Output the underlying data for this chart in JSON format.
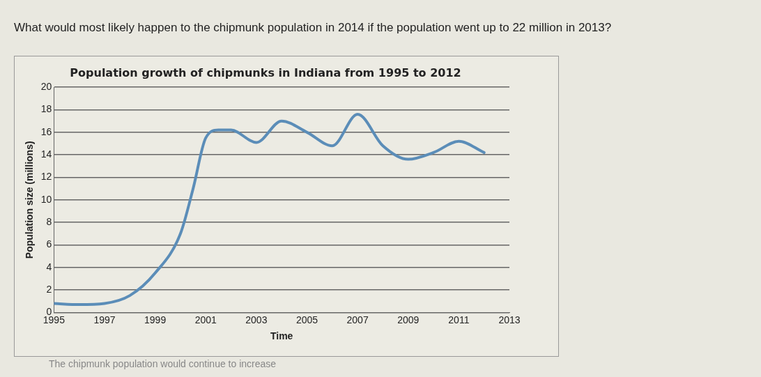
{
  "chart_data": {
    "type": "line",
    "title": "Population growth of chipmunks in Indiana from 1995 to 2012",
    "xlabel": "Time",
    "ylabel": "Population size (millions)",
    "annotations": [
      "What would most likely happen to the chipmunk population in 2014 if the population went up to 22 million in 2013?",
      "The chipmunk population would continue to increase"
    ],
    "series": [
      {
        "color": "#5b8db8",
        "x": [
          1995,
          1996,
          1997,
          1998,
          1999,
          2000,
          2000.5,
          2001,
          2001.5,
          2002,
          2003,
          2004,
          2005,
          2006,
          2007,
          2008,
          2009,
          2010,
          2011,
          2012
        ],
        "values": [
          0.8,
          0.7,
          0.8,
          1.5,
          3.5,
          7,
          11,
          15.5,
          16.2,
          16.2,
          15.1,
          17,
          16,
          14.8,
          17.6,
          14.8,
          13.6,
          14.2,
          15.2,
          14.2
        ]
      }
    ],
    "xlim": [
      1995,
      2013
    ],
    "xticks": [
      1995,
      1997,
      1999,
      2001,
      2003,
      2005,
      2007,
      2009,
      2011,
      2013
    ],
    "ylim": [
      0,
      20
    ],
    "yticks": [
      0,
      2,
      4,
      6,
      8,
      10,
      12,
      14,
      16,
      18,
      20
    ],
    "grid": "y",
    "legend": false,
    "marker": "none",
    "line_style": "solid"
  }
}
